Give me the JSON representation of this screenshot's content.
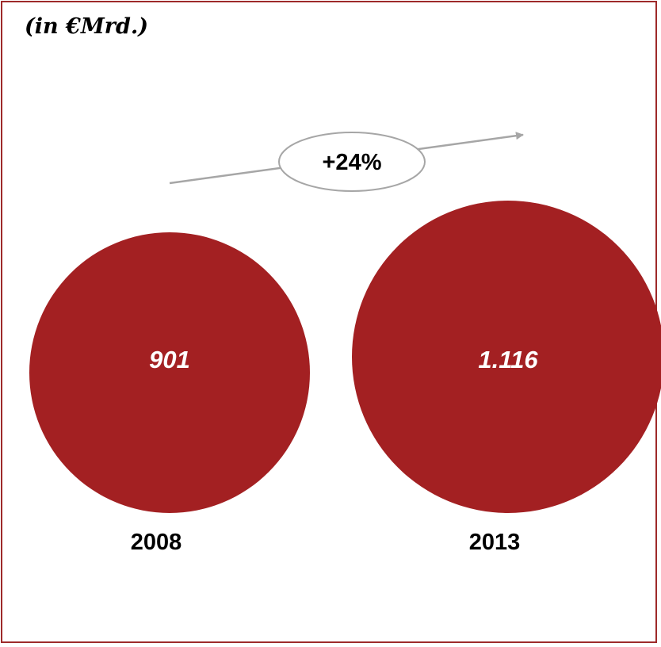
{
  "chart_data": {
    "type": "bubble",
    "unit": "(in €Mrd.)",
    "categories": [
      "2008",
      "2013"
    ],
    "values": [
      901,
      1116
    ],
    "value_labels": [
      "901",
      "1.116"
    ],
    "growth_label": "+24%",
    "colors": {
      "bubble": "#a32022",
      "value_text": "#ffffff",
      "frame": "#9e2a2a",
      "arrow": "#a6a6a6"
    }
  }
}
